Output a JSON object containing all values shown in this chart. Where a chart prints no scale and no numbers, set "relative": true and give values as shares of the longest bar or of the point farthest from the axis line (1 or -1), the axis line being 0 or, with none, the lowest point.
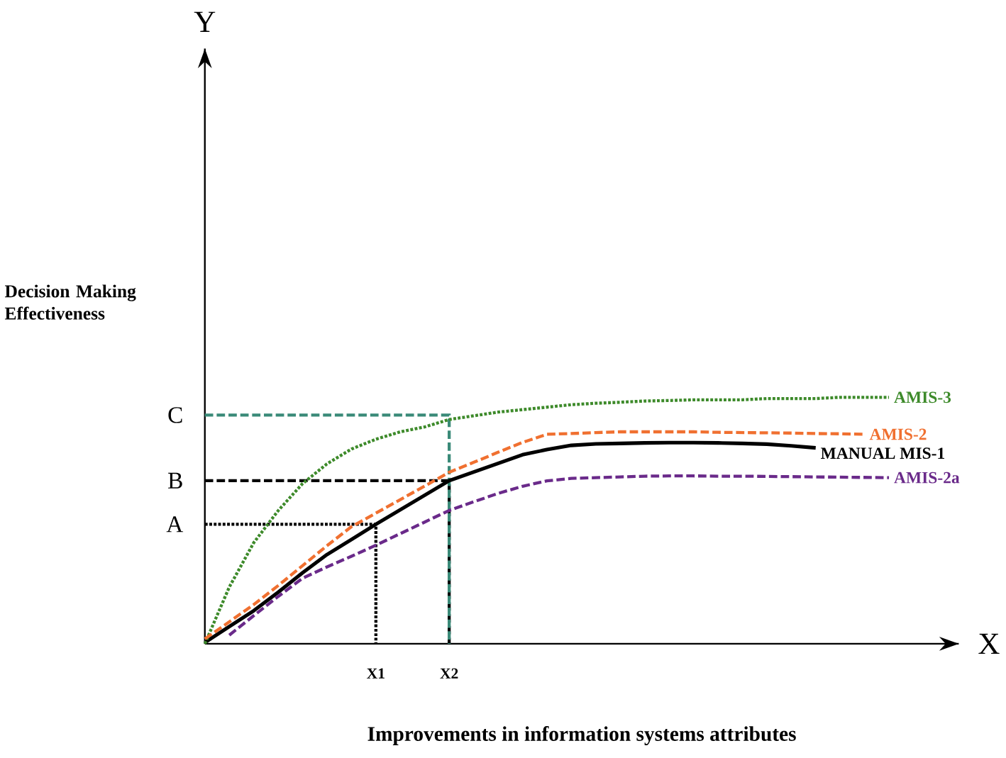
{
  "chart_data": {
    "type": "line",
    "relative": true,
    "xlabel": "Improvements in information systems attributes",
    "annotations": [
      "Y",
      "X",
      "Decision Making Effectiveness"
    ],
    "categories": [
      null,
      null,
      null,
      null,
      null,
      null,
      null,
      "X1",
      null,
      null,
      "X2",
      null,
      null,
      null,
      null,
      null,
      null,
      null,
      null,
      null,
      null,
      null,
      null,
      null,
      null,
      null,
      null,
      null,
      null
    ],
    "ref_lines": [
      {
        "axis": "y",
        "value": 0.485,
        "label": "A",
        "color": "#000000",
        "line_style": "dotted"
      },
      {
        "axis": "y",
        "value": 0.662,
        "label": "B",
        "color": "#000000",
        "line_style": "dashed"
      },
      {
        "axis": "y",
        "value": 0.928,
        "label": "C",
        "color": "#3a8a78",
        "line_style": "dashed"
      }
    ],
    "series": [
      {
        "name": "AMIS-3",
        "color": "#3d8a2a",
        "line_style": "dotted",
        "values": [
          0,
          0.23,
          0.41,
          0.54,
          0.65,
          0.73,
          0.79,
          0.83,
          0.86,
          0.88,
          0.91,
          0.925,
          0.94,
          0.95,
          0.96,
          0.97,
          0.976,
          0.98,
          0.985,
          0.987,
          0.99,
          0.99,
          0.99,
          0.995,
          0.995,
          0.995,
          1,
          1,
          1
        ]
      },
      {
        "name": "AMIS-2",
        "color": "#f07030",
        "line_style": "dashed",
        "values": [
          0.02,
          0.089,
          0.159,
          0.236,
          0.317,
          0.398,
          0.475,
          0.53,
          0.585,
          0.64,
          0.696,
          0.736,
          0.777,
          0.817,
          0.85,
          0.853,
          0.857,
          0.86,
          0.86,
          0.86,
          0.86,
          0.858,
          0.857,
          0.856,
          0.855,
          0.853,
          0.852,
          0.85,
          null
        ]
      },
      {
        "name": "MANUAL MIS-1",
        "color": "#000000",
        "line_style": "solid",
        "values": [
          0.005,
          0.07,
          0.134,
          0.209,
          0.288,
          0.362,
          0.423,
          0.485,
          0.544,
          0.603,
          0.662,
          0.697,
          0.732,
          0.767,
          0.788,
          0.805,
          0.811,
          0.813,
          0.815,
          0.816,
          0.816,
          0.815,
          0.813,
          0.81,
          0.803,
          0.795,
          null,
          null,
          null
        ]
      },
      {
        "name": "AMIS-2a",
        "color": "#6a2a8a",
        "line_style": "dashed",
        "values": [
          null,
          0.035,
          0.114,
          0.192,
          0.266,
          0.312,
          0.355,
          0.4,
          0.447,
          0.494,
          0.541,
          0.576,
          0.61,
          0.639,
          0.661,
          0.671,
          0.674,
          0.677,
          0.68,
          0.681,
          0.681,
          0.68,
          0.68,
          0.679,
          0.678,
          0.677,
          0.676,
          0.675,
          0.674
        ]
      }
    ]
  }
}
